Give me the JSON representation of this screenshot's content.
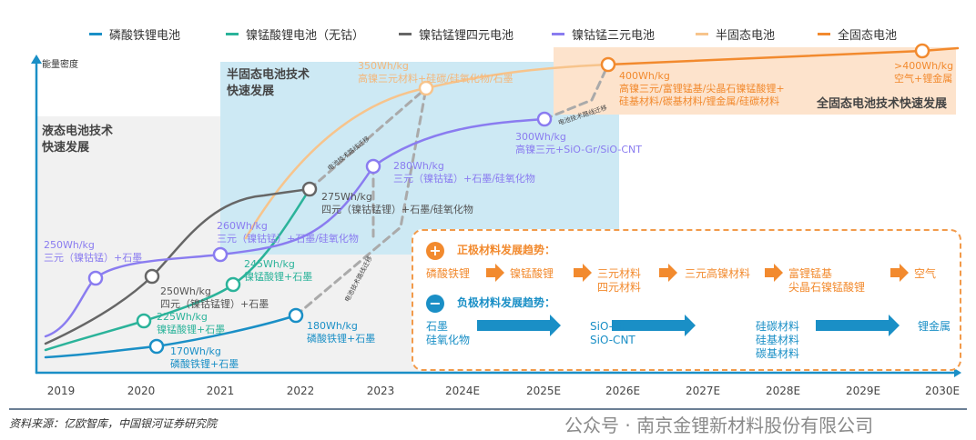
{
  "legend": [
    {
      "label": "磷酸铁锂电池",
      "color": "#1a8fc6"
    },
    {
      "label": "镍锰酸锂电池（无钴）",
      "color": "#2bb39a"
    },
    {
      "label": "镍钴锰锂四元电池",
      "color": "#666666"
    },
    {
      "label": "镍钴锰三元电池",
      "color": "#8a7cf0"
    },
    {
      "label": "半固态电池",
      "color": "#f7c48c"
    },
    {
      "label": "全固态电池",
      "color": "#f28a2e"
    }
  ],
  "y_axis_label": "能量密度",
  "x_ticks": [
    "2019",
    "2020",
    "2021",
    "2022",
    "2023",
    "2024E",
    "2025E",
    "2026E",
    "2027E",
    "2028E",
    "2029E",
    "2030E"
  ],
  "regions": {
    "liquid": "液态电池技术\n快速发展",
    "semi_solid": "半固态电池技术\n快速发展",
    "all_solid": "全固态电池技术快速发展"
  },
  "migration_tag": "电池技术路线迁移",
  "points": {
    "lfp1": [
      "170Wh/kg",
      "磷酸铁锂+石墨"
    ],
    "lfp2": [
      "180Wh/kg",
      "磷酸铁锂+石墨"
    ],
    "lmo1": [
      "225Wh/kg",
      "镍锰酸锂+石墨"
    ],
    "lmo2": [
      "245Wh/kg",
      "镍锰酸锂+石墨"
    ],
    "quat1": [
      "250Wh/kg",
      "四元（镍钴锰锂）+石墨"
    ],
    "quat2": [
      "275Wh/kg",
      "四元（镍钴锰锂）+石墨/硅氧化物"
    ],
    "ncm1": [
      "250Wh/kg",
      "三元（镍钴锰）+石墨"
    ],
    "ncm2": [
      "260Wh/kg",
      "三元（镍钴锰）+石墨/硅氧化物"
    ],
    "ncm3": [
      "280Wh/kg",
      "三元（镍钴锰）+石墨/硅氧化物"
    ],
    "ncm4": [
      "300Wh/kg",
      "高镍三元+SiO-Gr/SiO-CNT"
    ],
    "semi": [
      "350Wh/kg",
      "高镍三元材料+硅碳/硅氧化物/石墨"
    ],
    "solid1": [
      "400Wh/kg",
      "高镍三元/富锂锰基/尖晶石镍锰酸锂+",
      "硅基材料/碳基材料/锂金属/硅碳材料"
    ],
    "solid2": [
      ">400Wh/kg",
      "空气+锂金属"
    ]
  },
  "trends": {
    "cathode_title": "正极材料发展趋势：",
    "cathode": [
      "磷酸铁锂",
      "镍锰酸锂",
      "三元材料\n四元材料",
      "三元高镍材料",
      "富锂锰基\n尖晶石镍锰酸锂",
      "空气"
    ],
    "anode_title": "负极材料发展趋势：",
    "anode": [
      "石墨\n硅氧化物",
      "SiO-Gr\nSiO-CNT",
      "硅碳材料\n硅基材料\n碳基材料",
      "锂金属"
    ]
  },
  "watermark": "公众号 · 南京金锂新材料股份有限公司",
  "source": "资料来源：亿欧智库，中国银河证券研究院"
}
